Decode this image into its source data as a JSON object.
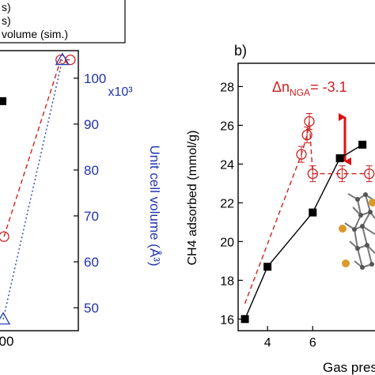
{
  "chart_data": [
    {
      "panel": "a",
      "type": "scatter",
      "title": "",
      "legend": {
        "placement": "top-left",
        "entries": [
          "s)",
          "s)",
          "volume (sim.)"
        ]
      },
      "x_tick_labels_visible": [
        "00"
      ],
      "y2label": "Unit cell volume (Å³)",
      "y2_multiplier_label": "x10³",
      "y2_ticks": [
        50,
        60,
        70,
        80,
        90,
        100
      ],
      "y2lim": [
        45,
        106
      ],
      "series": [
        {
          "marker": "filled-square",
          "points": [
            {
              "x": 0.05,
              "y": 95
            }
          ]
        },
        {
          "marker": "open-circle",
          "color": "#cc2222",
          "line": "dashed",
          "points": [
            {
              "x": 0.07,
              "y": 65.5
            },
            {
              "x": 0.78,
              "y": 104
            },
            {
              "x": 0.9,
              "y": 104
            }
          ]
        },
        {
          "marker": "open-triangle",
          "color": "#2244bb",
          "line": "dotted",
          "points": [
            {
              "x": 0.06,
              "y": 47.5
            },
            {
              "x": 0.8,
              "y": 104
            }
          ]
        }
      ]
    },
    {
      "panel": "b",
      "panel_label": "b)",
      "type": "line",
      "xlabel": "Gas press",
      "ylabel": "CH4 adsorbed (mmol/g)",
      "xlim": [
        2.7,
        9
      ],
      "ylim": [
        15.4,
        29.2
      ],
      "x_ticks": [
        4,
        6
      ],
      "y_ticks": [
        16,
        18,
        20,
        22,
        24,
        26,
        28
      ],
      "annotation": {
        "prefix": "Δn",
        "subscript": "NGA",
        "value": "= -3.1"
      },
      "series": [
        {
          "marker": "filled-square",
          "color": "#000000",
          "line": "solid",
          "points": [
            {
              "x": 3,
              "y": 16
            },
            {
              "x": 4,
              "y": 18.7
            },
            {
              "x": 6,
              "y": 21.5
            },
            {
              "x": 7.2,
              "y": 24.3
            },
            {
              "x": 8.2,
              "y": 25
            }
          ]
        },
        {
          "marker": "open-circle",
          "color": "#cc2222",
          "line": "dashed",
          "points": [
            {
              "x": 3,
              "y": 16.8
            },
            {
              "x": 5.5,
              "y": 24.5
            },
            {
              "x": 5.75,
              "y": 25.5
            },
            {
              "x": 5.85,
              "y": 26.2
            },
            {
              "x": 6,
              "y": 23.5
            },
            {
              "x": 7.3,
              "y": 23.5
            },
            {
              "x": 8.5,
              "y": 23.5
            }
          ]
        }
      ]
    }
  ]
}
